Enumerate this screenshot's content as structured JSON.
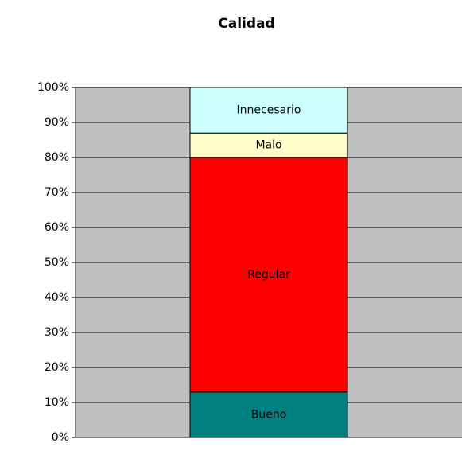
{
  "chart_data": {
    "type": "stacked_bar",
    "title": "Calidad",
    "categories": [
      null
    ],
    "series": [
      {
        "name": "Bueno",
        "color": "#008080",
        "values": [
          13
        ]
      },
      {
        "name": "Regular",
        "color": "#ff0000",
        "values": [
          67
        ]
      },
      {
        "name": "Malo",
        "color": "#ffffcc",
        "values": [
          7
        ]
      },
      {
        "name": "Innecesario",
        "color": "#ccffff",
        "values": [
          13
        ]
      }
    ],
    "ylim": [
      0,
      100
    ],
    "yticks": [
      {
        "value": 0,
        "label": "0%"
      },
      {
        "value": 10,
        "label": "10%"
      },
      {
        "value": 20,
        "label": "20%"
      },
      {
        "value": 30,
        "label": "30%"
      },
      {
        "value": 40,
        "label": "40%"
      },
      {
        "value": 50,
        "label": "50%"
      },
      {
        "value": 60,
        "label": "60%"
      },
      {
        "value": 70,
        "label": "70%"
      },
      {
        "value": 80,
        "label": "80%"
      },
      {
        "value": 90,
        "label": "90%"
      },
      {
        "value": 100,
        "label": "100%"
      }
    ],
    "grid": true,
    "plot_background": "#c0c0c0"
  }
}
